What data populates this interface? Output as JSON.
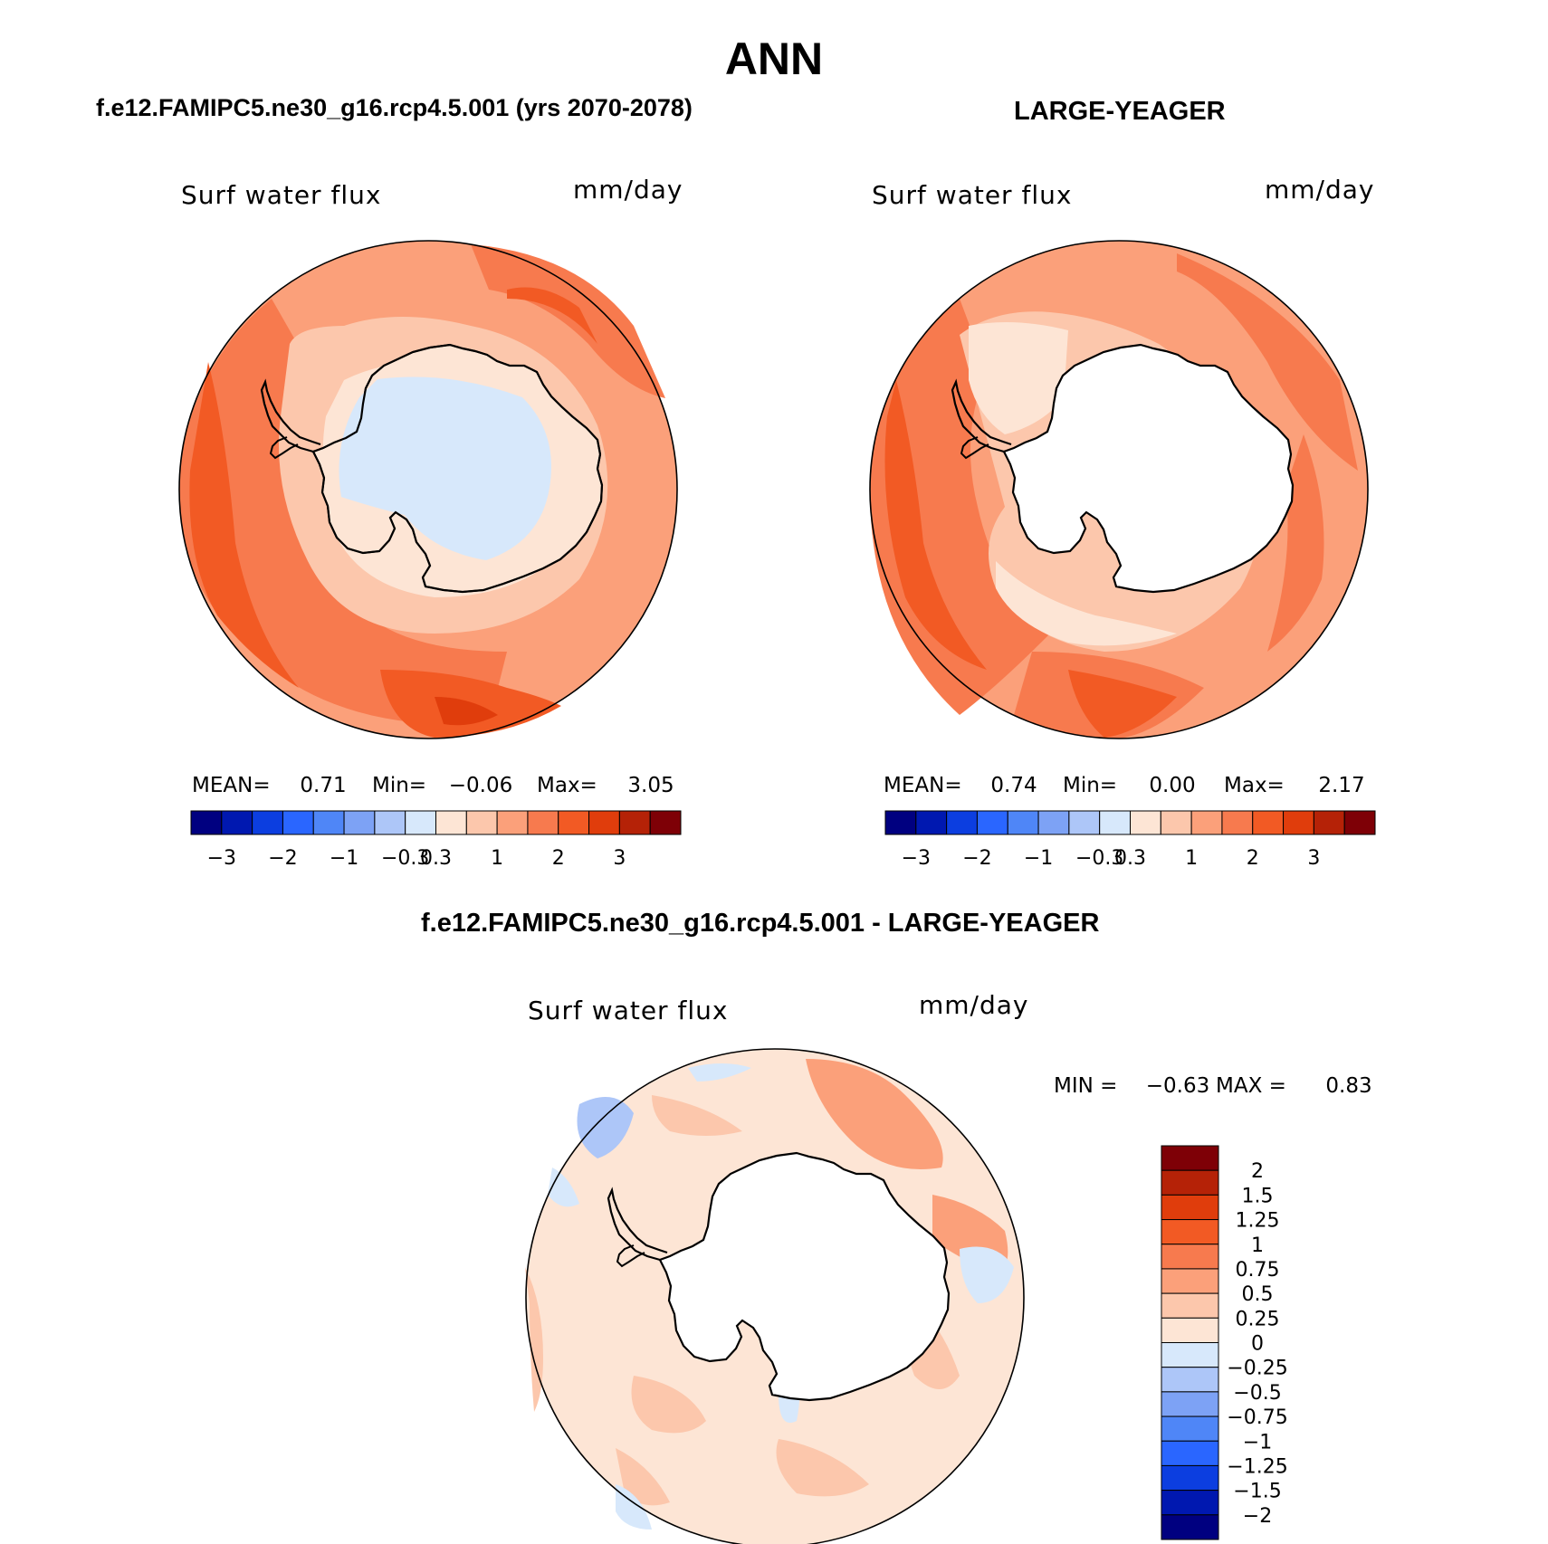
{
  "title": "ANN",
  "panels": [
    {
      "heading": "f.e12.FAMIPC5.ne30_g16.rcp4.5.001 (yrs 2070-2078)",
      "variable": "Surf water flux",
      "units": "mm/day",
      "stats": {
        "mean_label": "MEAN=",
        "mean": "0.71",
        "min_label": "Min=",
        "min": "−0.06",
        "max_label": "Max=",
        "max": "3.05"
      },
      "colorbar_ticks": [
        "−3",
        "−2",
        "−1",
        "−0.3",
        "0.3",
        "1",
        "2",
        "3"
      ]
    },
    {
      "heading": "LARGE-YEAGER",
      "variable": "Surf water flux",
      "units": "mm/day",
      "stats": {
        "mean_label": "MEAN=",
        "mean": "0.74",
        "min_label": "Min=",
        "min": "0.00",
        "max_label": "Max=",
        "max": "2.17"
      },
      "colorbar_ticks": [
        "−3",
        "−2",
        "−1",
        "−0.3",
        "0.3",
        "1",
        "2",
        "3"
      ]
    }
  ],
  "difference": {
    "heading": "f.e12.FAMIPC5.ne30_g16.rcp4.5.001 - LARGE-YEAGER",
    "variable": "Surf water flux",
    "units": "mm/day",
    "minmax": {
      "min_label": "MIN =",
      "min": "−0.63",
      "max_label": "MAX =",
      "max": "0.83"
    },
    "colorbar_labels": [
      "2",
      "1.5",
      "1.25",
      "1",
      "0.75",
      "0.5",
      "0.25",
      "0",
      "−0.25",
      "−0.5",
      "−0.75",
      "−1",
      "−1.25",
      "−1.5",
      "−2"
    ]
  },
  "colors": {
    "abs_scale": [
      "#000080",
      "#0018b0",
      "#0c3ee0",
      "#2a66ff",
      "#4f86f7",
      "#7da2f5",
      "#adc6f8",
      "#d7e8fb",
      "#fde5d5",
      "#fcc7ac",
      "#fba07a",
      "#f77a4e",
      "#f25a24",
      "#e03d0c",
      "#b52207",
      "#7e0006"
    ],
    "diff_scale": [
      "#7e0006",
      "#b52207",
      "#e03d0c",
      "#f25a24",
      "#f77a4e",
      "#fba07a",
      "#fcc7ac",
      "#fde5d5",
      "#d7e8fb",
      "#adc6f8",
      "#7da2f5",
      "#4f86f7",
      "#2a66ff",
      "#0c3ee0",
      "#0018b0",
      "#000080"
    ]
  }
}
